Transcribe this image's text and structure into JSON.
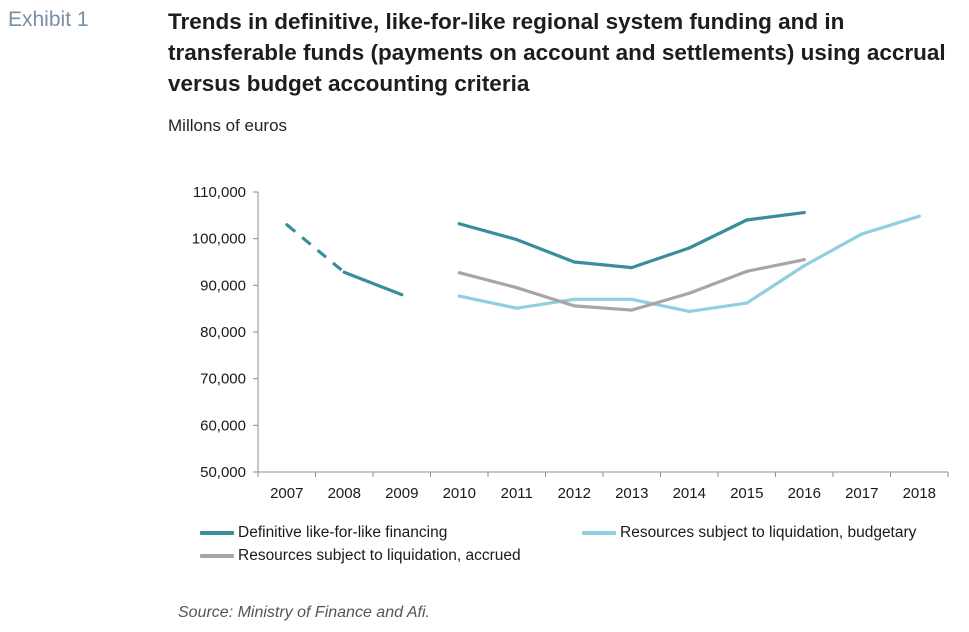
{
  "exhibit_label": "Exhibit 1",
  "title": "Trends in definitive, like-for-like regional system funding and in transferable funds (payments on account and settlements) using accrual versus budget accounting criteria",
  "subtitle": "Millons of euros",
  "source": "Source: Ministry of Finance and Afi.",
  "chart_data": {
    "type": "line",
    "x": [
      "2007",
      "2008",
      "2009",
      "2010",
      "2011",
      "2012",
      "2013",
      "2014",
      "2015",
      "2016",
      "2017",
      "2018"
    ],
    "ylim": [
      50000,
      110000
    ],
    "yticks": [
      50000,
      60000,
      70000,
      80000,
      90000,
      100000,
      110000
    ],
    "ytick_labels": [
      "50,000",
      "60,000",
      "70,000",
      "80,000",
      "90,000",
      "100,000",
      "110,000"
    ],
    "grid": false,
    "legend_position": "bottom",
    "series": [
      {
        "name": "Definitive like-for-like financing",
        "color": "#3a8d9b",
        "values": [
          103000,
          92800,
          88000,
          103200,
          99800,
          95000,
          93800,
          98000,
          104000,
          105600,
          null,
          null
        ],
        "dashed_segments": [
          [
            0,
            1
          ]
        ],
        "gap_after_index": 2
      },
      {
        "name": "Resources subject to liquidation, budgetary",
        "color": "#8fcfe0",
        "values": [
          null,
          null,
          null,
          87700,
          85100,
          87000,
          87000,
          84400,
          86200,
          94200,
          101000,
          104800
        ]
      },
      {
        "name": "Resources subject to liquidation, accrued",
        "color": "#a6a6a6",
        "values": [
          null,
          null,
          null,
          92700,
          89500,
          85600,
          84700,
          88300,
          93000,
          95500,
          null,
          null
        ]
      }
    ]
  }
}
